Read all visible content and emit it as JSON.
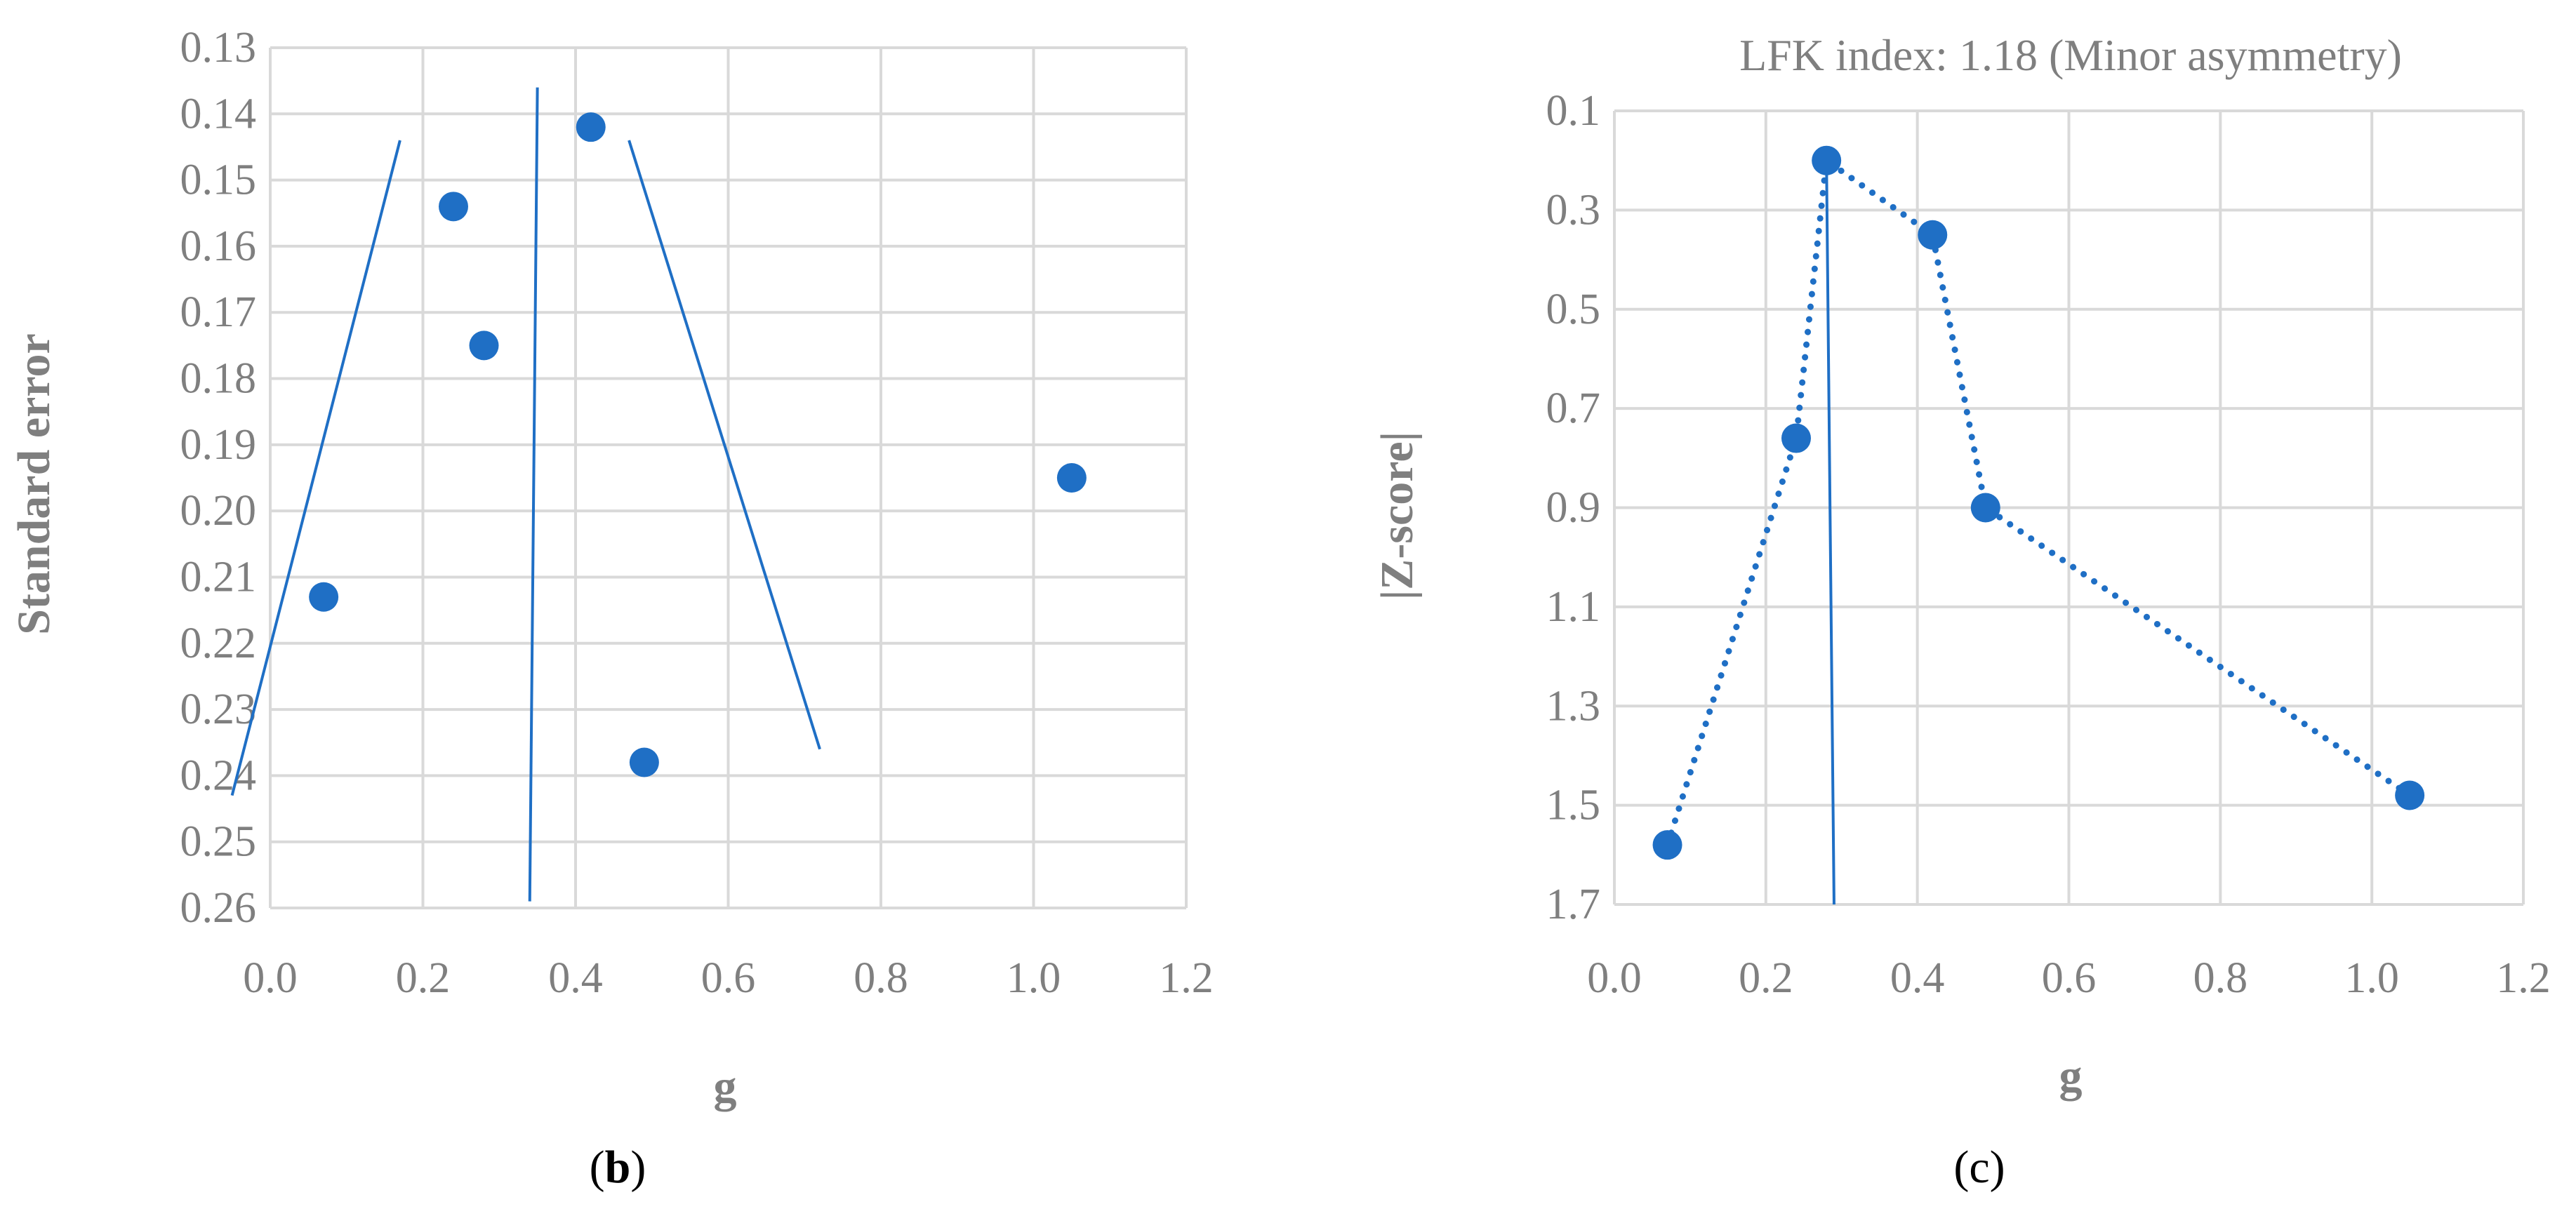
{
  "colors": {
    "series": "#1f6fc5",
    "grid": "#d9d9d9",
    "text": "#7f7f7f"
  },
  "chart_data": [
    {
      "type": "scatter",
      "panel": "b",
      "title": "",
      "xlabel": "g",
      "ylabel": "Standard error",
      "xlim": [
        0.0,
        1.2
      ],
      "ylim": [
        0.13,
        0.26
      ],
      "y_reversed": true,
      "xticks": [
        "0.0",
        "0.2",
        "0.4",
        "0.6",
        "0.8",
        "1.0",
        "1.2"
      ],
      "yticks": [
        "0.13",
        "0.14",
        "0.15",
        "0.16",
        "0.17",
        "0.18",
        "0.19",
        "0.20",
        "0.21",
        "0.22",
        "0.23",
        "0.24",
        "0.25",
        "0.26"
      ],
      "points": [
        {
          "x": 0.07,
          "y": 0.213
        },
        {
          "x": 0.24,
          "y": 0.154
        },
        {
          "x": 0.28,
          "y": 0.175
        },
        {
          "x": 0.42,
          "y": 0.142
        },
        {
          "x": 0.49,
          "y": 0.238
        },
        {
          "x": 1.05,
          "y": 0.195
        }
      ],
      "lines": [
        {
          "points": [
            {
              "x": 0.17,
              "y": 0.144
            },
            {
              "x": -0.05,
              "y": 0.243
            }
          ]
        },
        {
          "points": [
            {
              "x": 0.35,
              "y": 0.136
            },
            {
              "x": 0.34,
              "y": 0.259
            }
          ]
        },
        {
          "points": [
            {
              "x": 0.47,
              "y": 0.144
            },
            {
              "x": 0.72,
              "y": 0.236
            }
          ]
        }
      ],
      "grid": true,
      "legend": "none"
    },
    {
      "type": "scatter",
      "panel": "c",
      "title": "LFK index: 1.18 (Minor asymmetry)",
      "xlabel": "g",
      "ylabel": "|Z-score|",
      "xlim": [
        0.0,
        1.2
      ],
      "ylim": [
        0.1,
        1.7
      ],
      "y_reversed": true,
      "xticks": [
        "0.0",
        "0.2",
        "0.4",
        "0.6",
        "0.8",
        "1.0",
        "1.2"
      ],
      "yticks": [
        "0.1",
        "0.3",
        "0.5",
        "0.7",
        "0.9",
        "1.1",
        "1.3",
        "1.5",
        "1.7"
      ],
      "points": [
        {
          "x": 0.07,
          "y": 1.58
        },
        {
          "x": 0.24,
          "y": 0.76
        },
        {
          "x": 0.28,
          "y": 0.2
        },
        {
          "x": 0.42,
          "y": 0.35
        },
        {
          "x": 0.49,
          "y": 0.9
        },
        {
          "x": 1.05,
          "y": 1.48
        }
      ],
      "dotted_line_order": [
        0,
        1,
        2,
        3,
        4,
        5
      ],
      "lines": [
        {
          "points": [
            {
              "x": 0.28,
              "y": 0.2
            },
            {
              "x": 0.29,
              "y": 1.7
            }
          ]
        }
      ],
      "grid": true,
      "legend": "none"
    }
  ],
  "panel_labels": {
    "b_open": "(",
    "b_letter": "b",
    "b_close": ")",
    "c_label": "(c)"
  }
}
